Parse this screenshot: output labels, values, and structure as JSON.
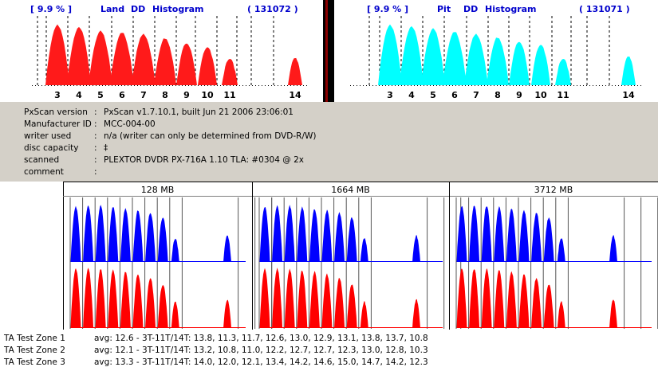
{
  "land_histogram": {
    "percent": "[ 9.9 % ]",
    "type": "Land",
    "standard": "DD",
    "title": "Histogram",
    "count": "( 131072 )",
    "bar_color": "#ff1a1a",
    "tick_labels": [
      "3",
      "4",
      "5",
      "6",
      "7",
      "8",
      "9",
      "10",
      "11",
      "14"
    ]
  },
  "pit_histogram": {
    "percent": "[ 9.9 % ]",
    "type": "Pit",
    "standard": "DD",
    "title": "Histogram",
    "count": "( 131071 )",
    "bar_color": "#00ffff",
    "tick_labels": [
      "3",
      "4",
      "5",
      "6",
      "7",
      "8",
      "9",
      "10",
      "11",
      "14"
    ]
  },
  "header_text_color": "#0000cc",
  "info": {
    "rows": [
      {
        "label": "PxScan version",
        "sep": ":",
        "value": "PxScan v1.7.10.1, built Jun 21 2006 23:06:01"
      },
      {
        "label": "Manufacturer ID",
        "sep": ":",
        "value": "MCC-004-00"
      },
      {
        "label": "writer used",
        "sep": ":",
        "value": "n/a (writer can only be determined from DVD-R/W)"
      },
      {
        "label": "disc capacity",
        "sep": ":",
        "value": "‡"
      },
      {
        "label": "scanned",
        "sep": ":",
        "value": "PLEXTOR DVDR  PX-716A  1.10 TLA: #0304 @ 2x"
      },
      {
        "label": "comment",
        "sep": ":",
        "value": ""
      }
    ]
  },
  "zones": {
    "labels": [
      "128 MB",
      "1664 MB",
      "3712 MB"
    ],
    "pit_color": "#0000ff",
    "land_color": "#ff0000"
  },
  "ta_zones": [
    {
      "name": "TA Test Zone 1",
      "values": "avg: 12.6 - 3T-11T/14T: 13.8, 11.3, 11.7, 12.6, 13.0, 12.9, 13.1, 13.8, 13.7, 10.8"
    },
    {
      "name": "TA Test Zone 2",
      "values": "avg: 12.1 - 3T-11T/14T: 13.2, 10.8, 11.0, 12.2, 12.7, 12.7, 12.3, 13.0, 12.8, 10.3"
    },
    {
      "name": "TA Test Zone 3",
      "values": "avg: 13.3 - 3T-11T/14T: 14.0, 12.0, 12.1, 13.4, 14.2, 14.6, 15.0, 14.7, 14.2, 12.3"
    }
  ]
}
